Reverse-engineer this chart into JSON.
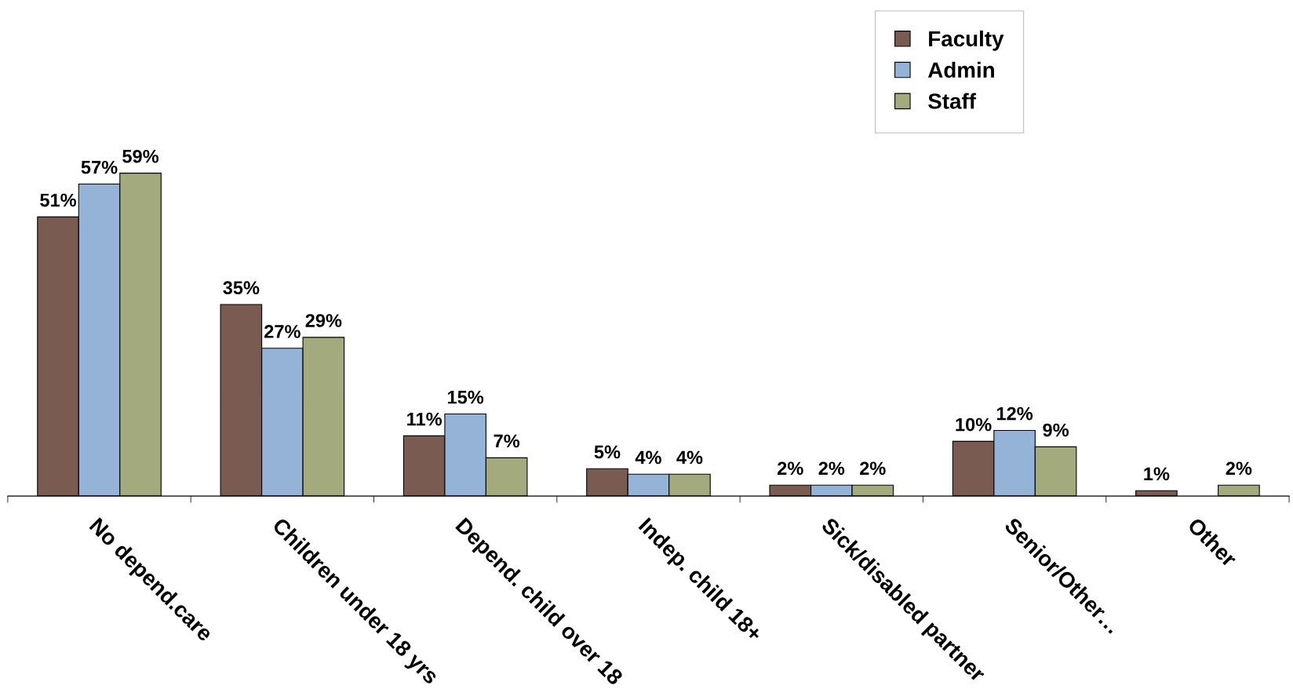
{
  "chart_data": {
    "type": "bar",
    "categories": [
      "No depend.care",
      "Children under 18 yrs",
      "Depend. child over 18",
      "Indep. child 18+",
      "Sick/disabled partner",
      "Senior/Other…",
      "Other"
    ],
    "series": [
      {
        "name": "Faculty",
        "color": "#7a5b51",
        "values": [
          51,
          35,
          11,
          5,
          2,
          10,
          1
        ],
        "value_labels": [
          "51%",
          "35%",
          "11%",
          "5%",
          "2%",
          "10%",
          "1%"
        ]
      },
      {
        "name": "Admin",
        "color": "#95b3d7",
        "values": [
          57,
          27,
          15,
          4,
          2,
          12,
          null
        ],
        "value_labels": [
          "57%",
          "27%",
          "15%",
          "4%",
          "2%",
          "12%",
          null
        ]
      },
      {
        "name": "Staff",
        "color": "#a3ab7e",
        "values": [
          59,
          29,
          7,
          4,
          2,
          9,
          2
        ],
        "value_labels": [
          "59%",
          "29%",
          "7%",
          "4%",
          "2%",
          "9%",
          "2%"
        ]
      }
    ],
    "legend": "top right",
    "grid": false
  }
}
